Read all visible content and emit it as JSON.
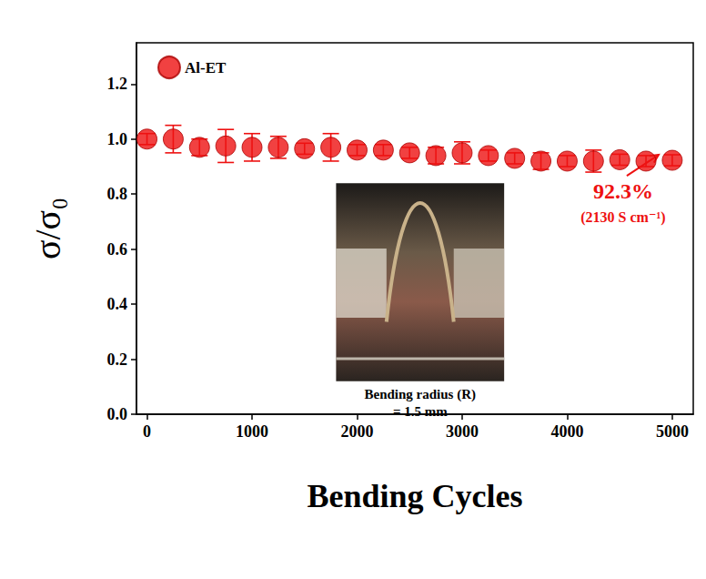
{
  "chart_data": {
    "type": "scatter",
    "x_label": "Bending Cycles",
    "y_label": "σ/σ₀",
    "series": [
      {
        "name": "Al-ET",
        "color": "#ee1111",
        "marker": "circle",
        "x": [
          0,
          250,
          500,
          750,
          1000,
          1250,
          1500,
          1750,
          2000,
          2250,
          2500,
          2750,
          3000,
          3250,
          3500,
          3750,
          4000,
          4250,
          4500,
          4750,
          5000
        ],
        "values": [
          1.0,
          1.0,
          0.97,
          0.975,
          0.97,
          0.97,
          0.965,
          0.97,
          0.96,
          0.96,
          0.95,
          0.94,
          0.95,
          0.94,
          0.93,
          0.92,
          0.92,
          0.92,
          0.925,
          0.92,
          0.923
        ],
        "errors": [
          0.02,
          0.05,
          0.03,
          0.06,
          0.05,
          0.04,
          0.02,
          0.05,
          0.02,
          0.02,
          0.02,
          0.03,
          0.04,
          0.02,
          0.02,
          0.03,
          0.02,
          0.04,
          0.02,
          0.02,
          0.02
        ]
      }
    ],
    "xlim": [
      -100,
      5200
    ],
    "xticks": [
      0,
      1000,
      2000,
      3000,
      4000,
      5000
    ],
    "ylim": [
      0,
      1.35
    ],
    "yticks": [
      {
        "value": 0,
        "label": "0.0"
      },
      {
        "value": 0.2,
        "label": "0.2"
      },
      {
        "value": 0.4,
        "label": "0.4"
      },
      {
        "value": 0.6,
        "label": "0.6"
      },
      {
        "value": 0.8,
        "label": "0.8"
      },
      {
        "value": 1.0,
        "label": "1.0"
      },
      {
        "value": 1.2,
        "label": "1.2"
      }
    ],
    "grid": false,
    "legend": "upper left",
    "annotations": [
      {
        "text": "92.3%",
        "x": 5000,
        "y": 0.923
      },
      {
        "text": "(2130 S cm⁻¹)",
        "x": 5000,
        "y": 0.923
      }
    ],
    "inset_caption": [
      "Bending radius (R)",
      "= 1.5 mm"
    ]
  }
}
